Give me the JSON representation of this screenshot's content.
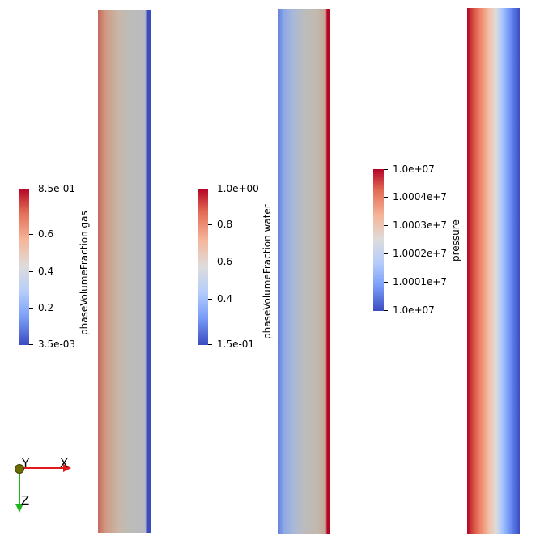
{
  "colorbars": [
    {
      "id": "gas",
      "title": "phaseVolumeFraction gas",
      "ticks": [
        "8.5e-01",
        "0.6",
        "0.4",
        "0.2",
        "3.5e-03"
      ]
    },
    {
      "id": "water",
      "title": "phaseVolumeFraction water",
      "ticks": [
        "1.0e+00",
        "0.8",
        "0.6",
        "0.4",
        "1.5e-01"
      ]
    },
    {
      "id": "pressure",
      "title": "pressure",
      "ticks": [
        "1.0e+07",
        "1.0004e+7",
        "1.0003e+7",
        "1.0002e+7",
        "1.0001e+7",
        "1.0e+07"
      ]
    }
  ],
  "axes": {
    "x": "X",
    "y": "Y",
    "z": "Z"
  },
  "colors": {
    "axis_x": "#e31a1c",
    "axis_y": "#6b6b00",
    "axis_z": "#1fb51f",
    "cool": "#3b4cc0",
    "warm": "#b40426"
  }
}
